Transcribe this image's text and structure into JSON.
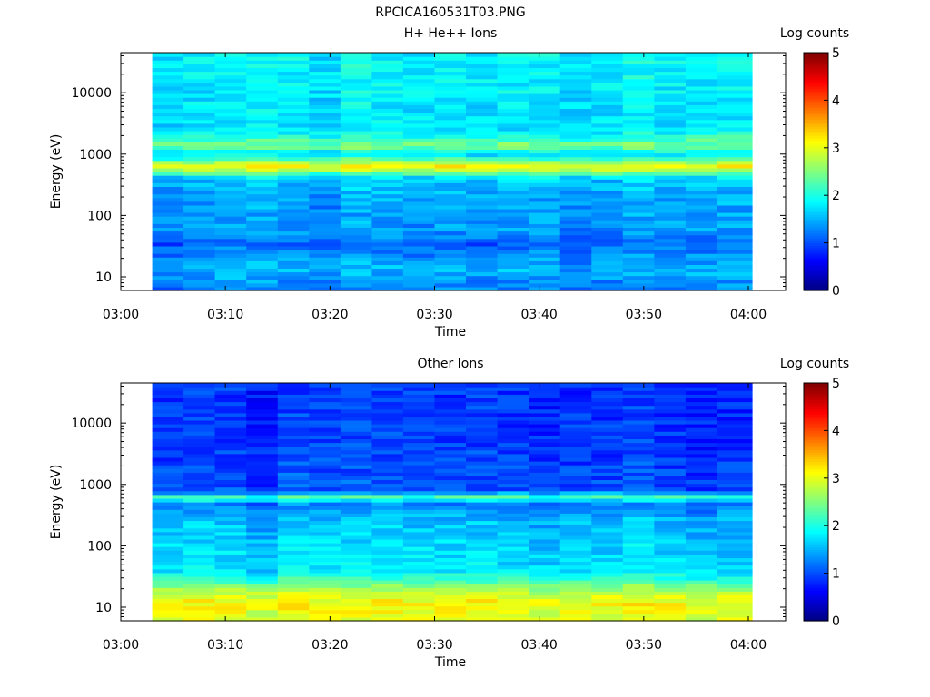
{
  "title": "RPCICA160531T03.PNG",
  "chart_data": [
    {
      "type": "heatmap",
      "title": "H+ He++ Ions",
      "xlabel": "Time",
      "ylabel": "Energy (eV)",
      "x_ticks": [
        "03:00",
        "03:10",
        "03:20",
        "03:30",
        "03:40",
        "03:50",
        "04:00"
      ],
      "x_range": [
        "03:00",
        "04:00"
      ],
      "y_scale": "log",
      "y_ticks": [
        "10",
        "100",
        "1000",
        "10000"
      ],
      "y_range": [
        6,
        45000
      ],
      "colorbar": {
        "label": "Log counts",
        "ticks": [
          "0",
          "1",
          "2",
          "3",
          "4",
          "5"
        ],
        "range": [
          0,
          5
        ],
        "colormap": "jet"
      },
      "time_bins": [
        "03:03",
        "03:06",
        "03:09",
        "03:12",
        "03:15",
        "03:18",
        "03:21",
        "03:24",
        "03:27",
        "03:30",
        "03:33",
        "03:36",
        "03:39",
        "03:42",
        "03:45",
        "03:48",
        "03:51",
        "03:54",
        "03:57"
      ],
      "energy_profile": [
        {
          "energy_ev": 8,
          "log_counts": 1.3
        },
        {
          "energy_ev": 12,
          "log_counts": 1.5
        },
        {
          "energy_ev": 20,
          "log_counts": 1.4
        },
        {
          "energy_ev": 35,
          "log_counts": 1.1
        },
        {
          "energy_ev": 60,
          "log_counts": 1.4
        },
        {
          "energy_ev": 100,
          "log_counts": 1.35
        },
        {
          "energy_ev": 200,
          "log_counts": 1.45
        },
        {
          "energy_ev": 400,
          "log_counts": 1.6
        },
        {
          "energy_ev": 620,
          "log_counts": 3.2
        },
        {
          "energy_ev": 1000,
          "log_counts": 1.7
        },
        {
          "energy_ev": 1380,
          "log_counts": 2.5
        },
        {
          "energy_ev": 2500,
          "log_counts": 1.75
        },
        {
          "energy_ev": 10000,
          "log_counts": 1.8
        },
        {
          "energy_ev": 40000,
          "log_counts": 1.85
        }
      ]
    },
    {
      "type": "heatmap",
      "title": "Other Ions",
      "xlabel": "Time",
      "ylabel": "Energy (eV)",
      "x_ticks": [
        "03:00",
        "03:10",
        "03:20",
        "03:30",
        "03:40",
        "03:50",
        "04:00"
      ],
      "x_range": [
        "03:00",
        "04:00"
      ],
      "y_scale": "log",
      "y_ticks": [
        "10",
        "100",
        "1000",
        "10000"
      ],
      "y_range": [
        6,
        45000
      ],
      "colorbar": {
        "label": "Log counts",
        "ticks": [
          "0",
          "1",
          "2",
          "3",
          "4",
          "5"
        ],
        "range": [
          0,
          5
        ],
        "colormap": "jet"
      },
      "time_bins": [
        "03:03",
        "03:06",
        "03:09",
        "03:12",
        "03:15",
        "03:18",
        "03:21",
        "03:24",
        "03:27",
        "03:30",
        "03:33",
        "03:36",
        "03:39",
        "03:42",
        "03:45",
        "03:48",
        "03:51",
        "03:54",
        "03:57"
      ],
      "energy_profile": [
        {
          "energy_ev": 8,
          "log_counts": 3.0
        },
        {
          "energy_ev": 12,
          "log_counts": 3.1
        },
        {
          "energy_ev": 18,
          "log_counts": 2.8
        },
        {
          "energy_ev": 25,
          "log_counts": 2.3
        },
        {
          "energy_ev": 40,
          "log_counts": 1.75
        },
        {
          "energy_ev": 100,
          "log_counts": 1.65
        },
        {
          "energy_ev": 300,
          "log_counts": 1.5
        },
        {
          "energy_ev": 500,
          "log_counts": 1.2
        },
        {
          "energy_ev": 620,
          "log_counts": 2.3
        },
        {
          "energy_ev": 800,
          "log_counts": 1.0
        },
        {
          "energy_ev": 3000,
          "log_counts": 0.9
        },
        {
          "energy_ev": 40000,
          "log_counts": 0.85
        }
      ]
    }
  ]
}
